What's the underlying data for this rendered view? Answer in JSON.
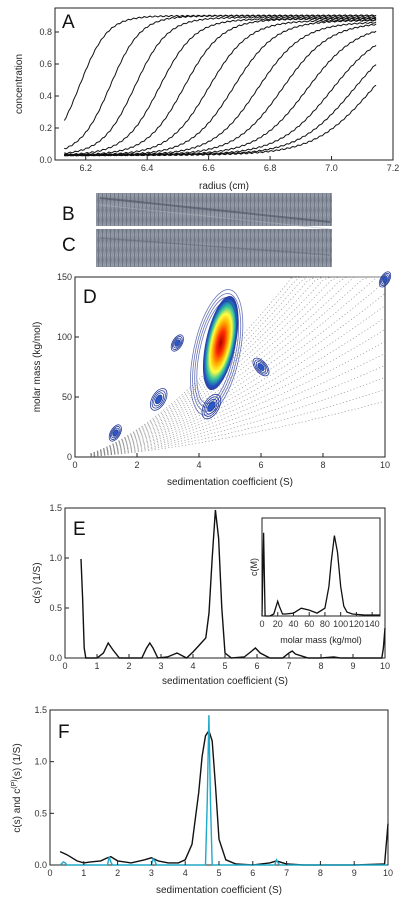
{
  "panels": {
    "A": {
      "letter": "A",
      "type": "line",
      "xlabel": "radius (cm)",
      "ylabel": "concentration",
      "xlim": [
        6.1,
        7.2
      ],
      "ylim": [
        0,
        0.95
      ],
      "xticks": [
        "6.2",
        "6.4",
        "6.6",
        "6.8",
        "7.0",
        "7.2"
      ],
      "yticks": [
        "0.0",
        "0.2",
        "0.4",
        "0.6",
        "0.8"
      ],
      "series": [
        {
          "midpoint": 6.18,
          "plateau": 0.9
        },
        {
          "midpoint": 6.28,
          "plateau": 0.9
        },
        {
          "midpoint": 6.36,
          "plateau": 0.89
        },
        {
          "midpoint": 6.44,
          "plateau": 0.88
        },
        {
          "midpoint": 6.52,
          "plateau": 0.88
        },
        {
          "midpoint": 6.6,
          "plateau": 0.87
        },
        {
          "midpoint": 6.68,
          "plateau": 0.87
        },
        {
          "midpoint": 6.76,
          "plateau": 0.86
        },
        {
          "midpoint": 6.84,
          "plateau": 0.86
        },
        {
          "midpoint": 6.92,
          "plateau": 0.85
        },
        {
          "midpoint": 7.0,
          "plateau": 0.84
        },
        {
          "midpoint": 7.07,
          "plateau": 0.84
        },
        {
          "midpoint": 7.13,
          "plateau": 0.84
        }
      ]
    },
    "B": {
      "letter": "B"
    },
    "C": {
      "letter": "C"
    },
    "D": {
      "letter": "D",
      "type": "contour",
      "xlabel": "sedimentation coefficient (S)",
      "ylabel": "molar mass (kg/mol)",
      "xlim": [
        0,
        10
      ],
      "ylim": [
        0,
        150
      ],
      "xticks": [
        "0",
        "2",
        "4",
        "6",
        "8",
        "10"
      ],
      "yticks": [
        "0",
        "50",
        "100",
        "150"
      ],
      "peaks": [
        {
          "s": 4.7,
          "M": 95,
          "level": 1.0
        },
        {
          "s": 4.4,
          "M": 42,
          "level": 0.25
        },
        {
          "s": 2.7,
          "M": 48,
          "level": 0.2
        },
        {
          "s": 6.0,
          "M": 75,
          "level": 0.15
        },
        {
          "s": 3.3,
          "M": 95,
          "level": 0.1
        },
        {
          "s": 1.3,
          "M": 20,
          "level": 0.1
        },
        {
          "s": 10.0,
          "M": 148,
          "level": 0.08
        }
      ]
    },
    "E": {
      "letter": "E",
      "type": "line",
      "xlabel": "sedimentation coefficient (S)",
      "ylabel": "c(s) (1/S)",
      "xlim": [
        0,
        10
      ],
      "ylim": [
        0,
        1.5
      ],
      "xticks": [
        "0",
        "1",
        "2",
        "3",
        "4",
        "5",
        "6",
        "7",
        "8",
        "9",
        "10"
      ],
      "yticks": [
        "0.0",
        "0.5",
        "1.0",
        "1.5"
      ],
      "x": [
        0.5,
        0.55,
        0.6,
        0.65,
        0.7,
        1.0,
        1.2,
        1.35,
        1.5,
        1.7,
        2.0,
        2.4,
        2.55,
        2.65,
        2.75,
        2.9,
        3.2,
        3.5,
        3.8,
        4.0,
        4.2,
        4.4,
        4.5,
        4.6,
        4.7,
        4.8,
        4.9,
        5.0,
        5.2,
        5.6,
        5.8,
        5.95,
        6.1,
        6.4,
        6.8,
        7.0,
        7.1,
        7.2,
        7.6,
        8.0,
        8.4,
        8.6,
        9.0,
        9.5,
        9.9,
        9.95,
        10.0
      ],
      "values": [
        0.99,
        0.6,
        0.1,
        0.0,
        0.0,
        0.0,
        0.05,
        0.15,
        0.08,
        0.0,
        0.0,
        0.0,
        0.1,
        0.15,
        0.1,
        0.0,
        0.01,
        0.05,
        0.0,
        0.06,
        0.13,
        0.2,
        0.45,
        1.0,
        1.48,
        1.2,
        0.5,
        0.05,
        0.0,
        0.01,
        0.06,
        0.1,
        0.05,
        0.0,
        0.0,
        0.05,
        0.07,
        0.04,
        0.0,
        0.0,
        0.01,
        0.0,
        0.0,
        0.0,
        0.0,
        0.1,
        0.3
      ],
      "inset": {
        "type": "line",
        "xlabel": "molar mass (kg/mol)",
        "ylabel": "c(M)",
        "xlim": [
          0,
          150
        ],
        "xticks": [
          "0",
          "20",
          "40",
          "60",
          "80",
          "100",
          "120",
          "140"
        ],
        "x": [
          0,
          2,
          4,
          6,
          10,
          15,
          18,
          20,
          22,
          26,
          30,
          40,
          50,
          60,
          70,
          80,
          85,
          88,
          92,
          96,
          100,
          104,
          108,
          115,
          130,
          145,
          150
        ],
        "values": [
          0.0,
          0.85,
          0.0,
          0.0,
          0.0,
          0.02,
          0.1,
          0.15,
          0.1,
          0.02,
          0.02,
          0.03,
          0.08,
          0.06,
          0.03,
          0.08,
          0.3,
          0.55,
          0.82,
          0.65,
          0.3,
          0.1,
          0.04,
          0.02,
          0.01,
          0.01,
          0.01
        ]
      }
    },
    "F": {
      "letter": "F",
      "type": "line",
      "xlabel": "sedimentation coefficient (S)",
      "ylabel_main": "c(s) and c",
      "ylabel_sup": "(P)",
      "ylabel_tail": "(s) (1/S)",
      "xlim": [
        0,
        10
      ],
      "ylim": [
        0,
        1.5
      ],
      "xticks": [
        "0",
        "1",
        "2",
        "3",
        "4",
        "5",
        "6",
        "7",
        "8",
        "9",
        "10"
      ],
      "yticks": [
        "0.0",
        "0.5",
        "1.0",
        "1.5"
      ],
      "series": [
        {
          "color": "#111111",
          "x": [
            0.3,
            0.5,
            0.8,
            1.0,
            1.2,
            1.5,
            1.7,
            1.8,
            2.0,
            2.4,
            2.8,
            3.0,
            3.2,
            3.5,
            3.8,
            4.0,
            4.2,
            4.4,
            4.5,
            4.6,
            4.7,
            4.8,
            4.9,
            5.0,
            5.2,
            5.5,
            6.0,
            6.5,
            6.7,
            7.0,
            7.5,
            8.0,
            9.0,
            9.9,
            10.0
          ],
          "values": [
            0.13,
            0.1,
            0.04,
            0.02,
            0.03,
            0.04,
            0.07,
            0.08,
            0.04,
            0.02,
            0.05,
            0.07,
            0.04,
            0.02,
            0.02,
            0.05,
            0.2,
            0.7,
            1.05,
            1.25,
            1.3,
            1.2,
            0.75,
            0.25,
            0.05,
            0.01,
            0.0,
            0.02,
            0.04,
            0.01,
            0.0,
            0.0,
            0.0,
            0.01,
            0.4
          ]
        },
        {
          "color": "#20a8c8",
          "x": [
            0.3,
            0.4,
            0.45,
            0.5,
            1.7,
            1.75,
            1.8,
            1.85,
            3.0,
            3.05,
            3.1,
            3.15,
            4.6,
            4.65,
            4.7,
            4.75,
            4.8,
            6.65,
            6.7,
            6.75,
            6.8,
            10.0
          ],
          "values": [
            0.0,
            0.03,
            0.02,
            0.0,
            0.0,
            0.08,
            0.03,
            0.0,
            0.0,
            0.06,
            0.04,
            0.0,
            0.0,
            0.6,
            1.45,
            0.6,
            0.0,
            0.0,
            0.05,
            0.02,
            0.0,
            0.0
          ]
        }
      ]
    }
  }
}
